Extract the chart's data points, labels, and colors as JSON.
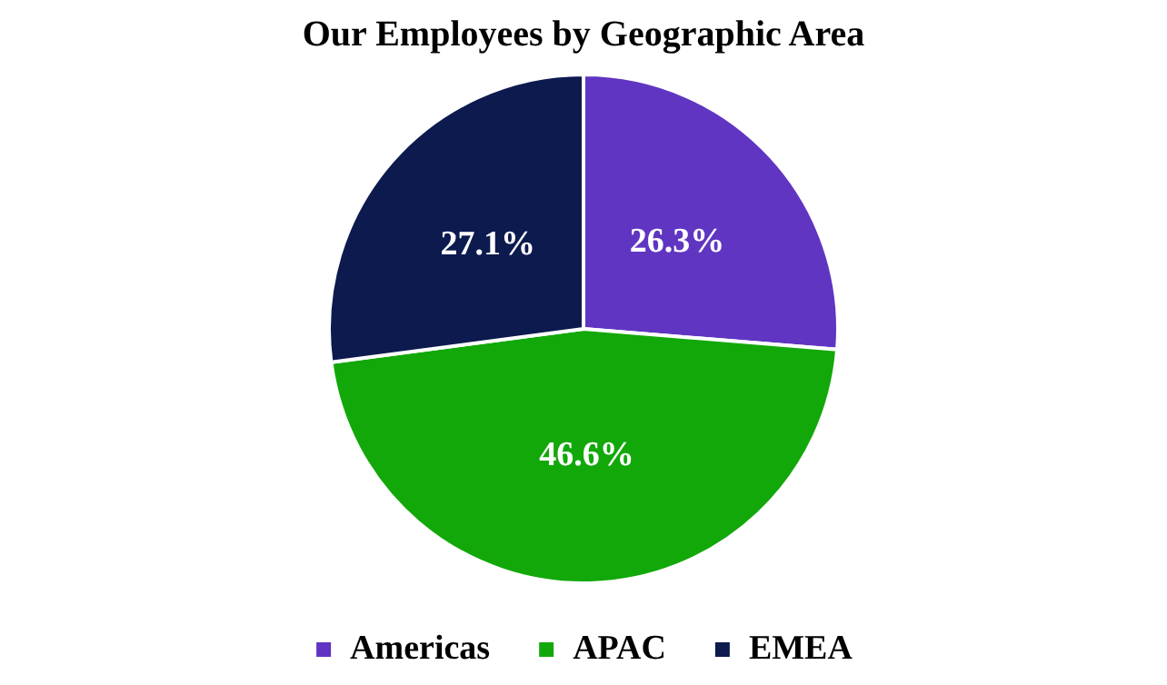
{
  "chart_data": {
    "type": "pie",
    "title": "Our Employees by Geographic Area",
    "categories": [
      "Americas",
      "APAC",
      "EMEA"
    ],
    "values": [
      26.3,
      46.6,
      27.1
    ],
    "colors": [
      "#6035c2",
      "#12a80a",
      "#0c1a4e"
    ],
    "value_labels": [
      "26.3%",
      "46.6%",
      "27.1%"
    ],
    "legend": "bottom"
  }
}
